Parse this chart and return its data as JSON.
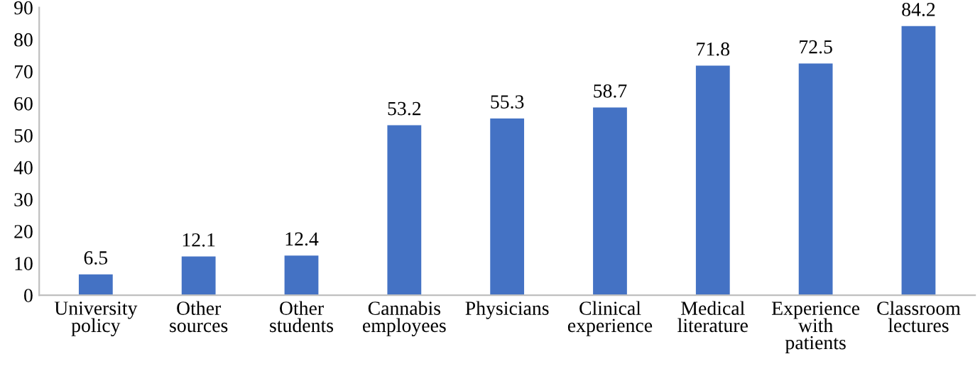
{
  "chart_data": {
    "type": "bar",
    "categories": [
      "University\npolicy",
      "Other\nsources",
      "Other\nstudents",
      "Cannabis\nemployees",
      "Physicians",
      "Clinical\nexperience",
      "Medical\nliterature",
      "Experience\nwith\npatients",
      "Classroom\nlectures"
    ],
    "values": [
      6.5,
      12.1,
      12.4,
      53.2,
      55.3,
      58.7,
      71.8,
      72.5,
      84.2
    ],
    "color": "#4472c4",
    "ylim": [
      0,
      90
    ],
    "yticks": [
      0,
      10,
      20,
      30,
      40,
      50,
      60,
      70,
      80,
      90
    ],
    "data_labels": true,
    "grid": false,
    "legend": false
  }
}
